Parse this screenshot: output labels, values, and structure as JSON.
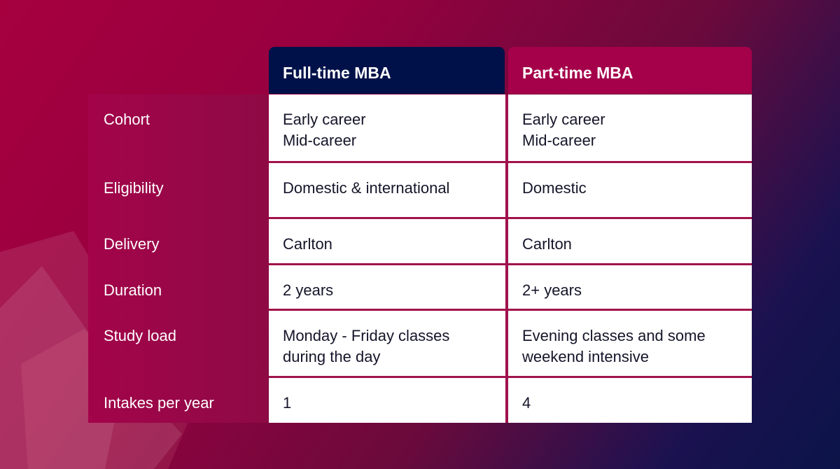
{
  "table": {
    "headers": [
      "Full-time MBA",
      "Part-time MBA"
    ],
    "rows": [
      {
        "label": "Cohort",
        "cells": [
          [
            "Early career",
            "Mid-career"
          ],
          [
            "Early career",
            "Mid-career"
          ]
        ]
      },
      {
        "label": "Eligibility",
        "cells": [
          "Domestic & international",
          "Domestic"
        ]
      },
      {
        "label": "Delivery",
        "cells": [
          "Carlton",
          "Carlton"
        ]
      },
      {
        "label": "Duration",
        "cells": [
          "2 years",
          "2+ years"
        ]
      },
      {
        "label": "Study load",
        "cells": [
          "Monday - Friday classes during the day",
          "Evening classes and some weekend intensive"
        ]
      },
      {
        "label": "Intakes per year",
        "cells": [
          1,
          4
        ]
      }
    ]
  }
}
